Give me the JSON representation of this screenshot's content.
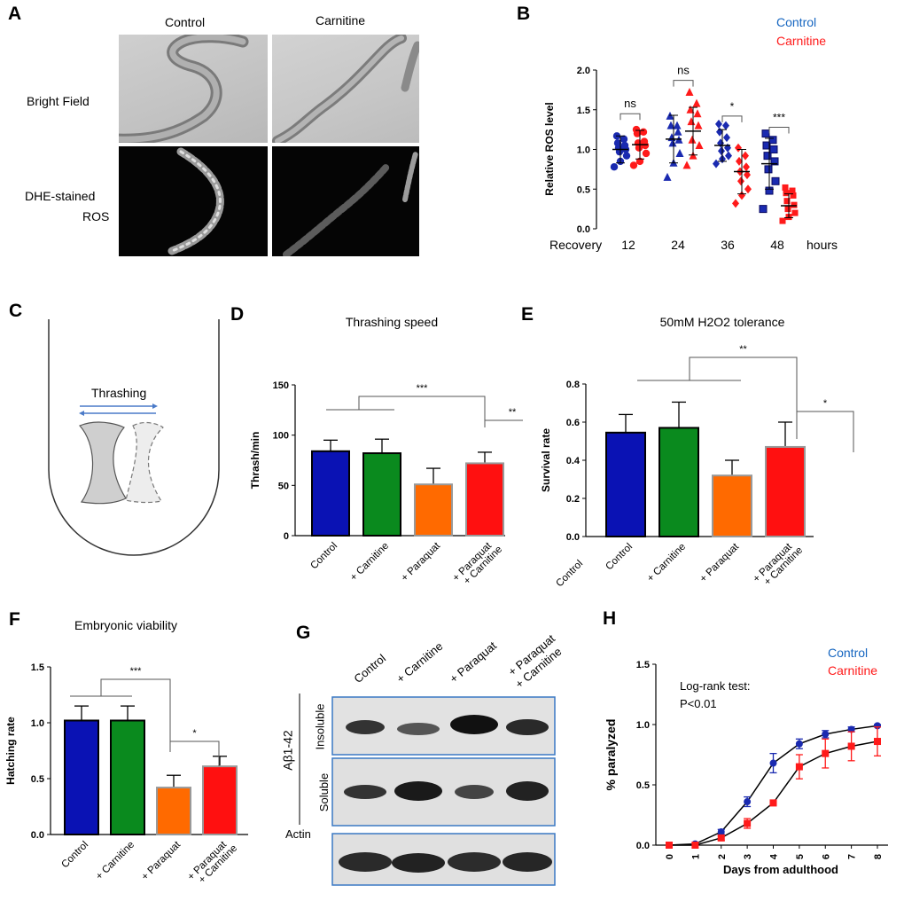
{
  "panel_letters": [
    "A",
    "B",
    "C",
    "D",
    "E",
    "F",
    "G",
    "H"
  ],
  "panelA": {
    "col_labels": [
      "Control",
      "Carnitine"
    ],
    "row_labels": {
      "bright": "Bright Field",
      "dhe_line1": "DHE-stained",
      "dhe_line2": "ROS"
    }
  },
  "panelC": {
    "label": "Thrashing"
  },
  "panelG": {
    "lanes": [
      [
        "Control"
      ],
      [
        "+ Carnitine"
      ],
      [
        "+ Paraquat"
      ],
      [
        "+ Paraquat",
        "+ Carnitine"
      ]
    ],
    "ab_label": "Aβ1-42",
    "insoluble": "Insoluble",
    "soluble": "Soluble",
    "actin": "Actin"
  },
  "colors": {
    "control_blue": "#0a12b4",
    "carnitine_green": "#0a8a1e",
    "paraquat_orange": "#ff6a00",
    "combo_red": "#ff1010",
    "legend_blue": "#1565c0",
    "legend_red": "#ff1a1a"
  },
  "chart_data": [
    {
      "panel": "B",
      "type": "scatter",
      "legend": [
        "Control",
        "Carnitine"
      ],
      "ylabel": "Relative ROS level",
      "xprefix": "Recovery",
      "xsuffix": "hours",
      "groups": [
        "12",
        "24",
        "36",
        "48"
      ],
      "ylim": [
        0,
        2.0
      ],
      "yticks": [
        "0.0",
        "0.5",
        "1.0",
        "1.5",
        "2.0"
      ],
      "series": [
        {
          "name": "Control",
          "marker": "circle",
          "mean": 1.0,
          "sd": 0.17,
          "points": [
            [
              12,
              0.78
            ],
            [
              12,
              0.85
            ],
            [
              12,
              0.92
            ],
            [
              12,
              0.97
            ],
            [
              12,
              1.0
            ],
            [
              12,
              1.02
            ],
            [
              12,
              1.05
            ],
            [
              12,
              1.08
            ],
            [
              12,
              1.13
            ],
            [
              12,
              1.17
            ]
          ]
        },
        {
          "name": "Carnitine",
          "marker": "circle",
          "mean": 1.06,
          "sd": 0.18,
          "points": [
            [
              12,
              0.8
            ],
            [
              12,
              0.85
            ],
            [
              12,
              0.95
            ],
            [
              12,
              1.02
            ],
            [
              12,
              1.05
            ],
            [
              12,
              1.08
            ],
            [
              12,
              1.1
            ],
            [
              12,
              1.2
            ],
            [
              12,
              1.22
            ],
            [
              12,
              1.25
            ]
          ]
        },
        {
          "name": "Control",
          "marker": "triangle",
          "mean": 1.13,
          "sd": 0.3,
          "points": [
            [
              24,
              0.65
            ],
            [
              24,
              0.83
            ],
            [
              24,
              0.95
            ],
            [
              24,
              1.08
            ],
            [
              24,
              1.12
            ],
            [
              24,
              1.15
            ],
            [
              24,
              1.22
            ],
            [
              24,
              1.3
            ],
            [
              24,
              1.3
            ],
            [
              24,
              1.42
            ]
          ]
        },
        {
          "name": "Carnitine",
          "marker": "triangle",
          "mean": 1.23,
          "sd": 0.3,
          "points": [
            [
              24,
              0.8
            ],
            [
              24,
              0.92
            ],
            [
              24,
              1.05
            ],
            [
              24,
              1.12
            ],
            [
              24,
              1.3
            ],
            [
              24,
              1.35
            ],
            [
              24,
              1.45
            ],
            [
              24,
              1.5
            ],
            [
              24,
              1.58
            ],
            [
              24,
              1.72
            ]
          ]
        },
        {
          "name": "Control",
          "marker": "diamond",
          "mean": 1.05,
          "sd": 0.2,
          "points": [
            [
              36,
              0.82
            ],
            [
              36,
              0.88
            ],
            [
              36,
              0.92
            ],
            [
              36,
              0.98
            ],
            [
              36,
              1.02
            ],
            [
              36,
              1.08
            ],
            [
              36,
              1.15
            ],
            [
              36,
              1.22
            ],
            [
              36,
              1.3
            ],
            [
              36,
              1.32
            ]
          ]
        },
        {
          "name": "Carnitine",
          "marker": "diamond",
          "mean": 0.72,
          "sd": 0.28,
          "points": [
            [
              36,
              0.32
            ],
            [
              36,
              0.42
            ],
            [
              36,
              0.5
            ],
            [
              36,
              0.6
            ],
            [
              36,
              0.68
            ],
            [
              36,
              0.72
            ],
            [
              36,
              0.78
            ],
            [
              36,
              0.85
            ],
            [
              36,
              0.92
            ],
            [
              36,
              1.02
            ]
          ]
        },
        {
          "name": "Control",
          "marker": "square",
          "mean": 0.82,
          "sd": 0.32,
          "points": [
            [
              48,
              0.25
            ],
            [
              48,
              0.48
            ],
            [
              48,
              0.6
            ],
            [
              48,
              0.75
            ],
            [
              48,
              0.85
            ],
            [
              48,
              0.92
            ],
            [
              48,
              1.0
            ],
            [
              48,
              1.05
            ],
            [
              48,
              1.12
            ],
            [
              48,
              1.2
            ]
          ]
        },
        {
          "name": "Carnitine",
          "marker": "square",
          "mean": 0.29,
          "sd": 0.15,
          "points": [
            [
              48,
              0.1
            ],
            [
              48,
              0.15
            ],
            [
              48,
              0.2
            ],
            [
              48,
              0.25
            ],
            [
              48,
              0.3
            ],
            [
              48,
              0.35
            ],
            [
              48,
              0.42
            ],
            [
              48,
              0.45
            ],
            [
              48,
              0.48
            ],
            [
              48,
              0.52
            ]
          ]
        }
      ],
      "significance": [
        "ns",
        "ns",
        "*",
        "***"
      ]
    },
    {
      "panel": "D",
      "type": "bar",
      "title": "Thrashing speed",
      "ylabel": "Thrash/min",
      "ylim": [
        0,
        150
      ],
      "yticks": [
        "0",
        "50",
        "100",
        "150"
      ],
      "categories": [
        "Control",
        "+ Carnitine",
        "+ Paraquat",
        "+ Paraquat\n+ Carnitine"
      ],
      "values": [
        84,
        82,
        51,
        72
      ],
      "errors": [
        11,
        14,
        16,
        11
      ],
      "significance": [
        "***",
        "**"
      ]
    },
    {
      "panel": "E",
      "type": "bar",
      "title": "50mM H2O2 tolerance",
      "ylabel": "Survival rate",
      "ylim": [
        0,
        0.8
      ],
      "yticks": [
        "0.0",
        "0.2",
        "0.4",
        "0.6",
        "0.8"
      ],
      "categories": [
        "Control",
        "+ Carnitine",
        "+ Paraquat",
        "+ Paraquat\n+ Carnitine"
      ],
      "extra_label": "Control",
      "values": [
        0.545,
        0.57,
        0.32,
        0.47
      ],
      "errors": [
        0.095,
        0.135,
        0.08,
        0.13
      ],
      "significance": [
        "**",
        "*"
      ]
    },
    {
      "panel": "F",
      "type": "bar",
      "title": "Embryonic viability",
      "ylabel": "Hatching rate",
      "ylim": [
        0,
        1.5
      ],
      "yticks": [
        "0.0",
        "0.5",
        "1.0",
        "1.5"
      ],
      "categories": [
        "Control",
        "+ Carnitine",
        "+ Paraquat",
        "+ Paraquat\n+ Carnitine"
      ],
      "values": [
        1.02,
        1.02,
        0.42,
        0.61
      ],
      "errors": [
        0.13,
        0.13,
        0.11,
        0.09
      ],
      "significance": [
        "***",
        "*"
      ]
    },
    {
      "panel": "H",
      "type": "line",
      "xlabel": "Days from adulthood",
      "ylabel": "% paralyzed",
      "ylim": [
        0,
        1.5
      ],
      "xlim": [
        0,
        8
      ],
      "yticks": [
        "0.0",
        "0.5",
        "1.0",
        "1.5"
      ],
      "xticks": [
        "0",
        "1",
        "2",
        "3",
        "4",
        "5",
        "6",
        "7",
        "8"
      ],
      "annotation": [
        "Log-rank test:",
        "P<0.01"
      ],
      "series": [
        {
          "name": "Control",
          "marker": "circle",
          "x": [
            0,
            1,
            2,
            3,
            4,
            5,
            6,
            7,
            8
          ],
          "y": [
            0.0,
            0.01,
            0.11,
            0.36,
            0.68,
            0.84,
            0.92,
            0.96,
            0.99
          ],
          "err": [
            0,
            0,
            0.02,
            0.04,
            0.08,
            0.04,
            0.03,
            0.02,
            0.01
          ]
        },
        {
          "name": "Carnitine",
          "marker": "square",
          "x": [
            0,
            1,
            2,
            3,
            4,
            5,
            6,
            7,
            8
          ],
          "y": [
            0.0,
            0.0,
            0.06,
            0.18,
            0.35,
            0.65,
            0.76,
            0.82,
            0.86
          ],
          "err": [
            0,
            0,
            0.02,
            0.04,
            0.02,
            0.1,
            0.12,
            0.12,
            0.12
          ]
        }
      ]
    }
  ]
}
